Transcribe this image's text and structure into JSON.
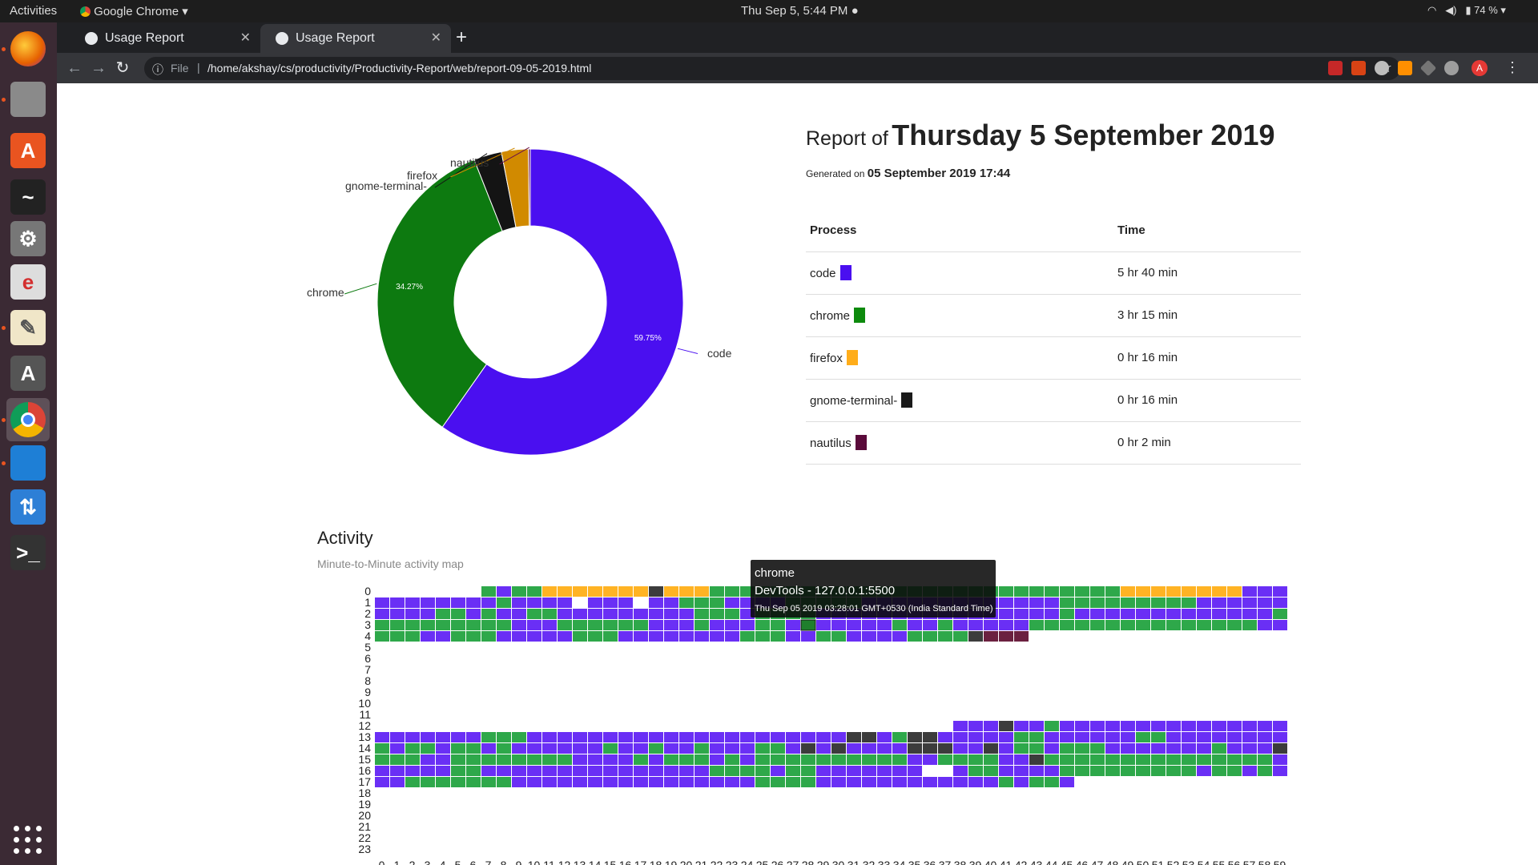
{
  "topbar": {
    "activities": "Activities",
    "app_menu": "Google Chrome",
    "clock": "Thu Sep  5,  5:44 PM",
    "battery": "74 %"
  },
  "dock": {
    "items": [
      {
        "name": "firefox-icon",
        "color": "#e66000",
        "glyph": "",
        "running": true
      },
      {
        "name": "files-icon",
        "color": "#8a8a8a",
        "glyph": "",
        "running": true
      },
      {
        "name": "software-center-icon",
        "color": "#e95420",
        "glyph": "A",
        "running": false
      },
      {
        "name": "system-monitor-icon",
        "color": "#222222",
        "glyph": "~",
        "running": false
      },
      {
        "name": "settings-tools-icon",
        "color": "#777777",
        "glyph": "⚙",
        "running": false
      },
      {
        "name": "app-e-icon",
        "color": "#dddddd",
        "glyph": "e",
        "running": false
      },
      {
        "name": "text-editor-icon",
        "color": "#f0e6c8",
        "glyph": "✎",
        "running": true
      },
      {
        "name": "software-updater-icon",
        "color": "#555555",
        "glyph": "A",
        "running": false
      },
      {
        "name": "chrome-icon",
        "color": "#ffffff",
        "glyph": "",
        "running": true
      },
      {
        "name": "vscode-icon",
        "color": "#1e7fd6",
        "glyph": "",
        "running": true
      },
      {
        "name": "upload-icon",
        "color": "#2d7fd6",
        "glyph": "⇅",
        "running": false
      },
      {
        "name": "terminal-icon",
        "color": "#333333",
        "glyph": ">_",
        "running": false
      }
    ]
  },
  "browser": {
    "tabs": [
      {
        "title": "Usage Report",
        "active": false
      },
      {
        "title": "Usage Report",
        "active": true
      }
    ],
    "url_scheme": "File",
    "url": "/home/akshay/cs/productivity/Productivity-Report/web/report-09-05-2019.html"
  },
  "report": {
    "title_prefix": "Report of",
    "title_date": "Thursday 5 September 2019",
    "generated_prefix": "Generated on",
    "generated_date": "05 September 2019 17:44",
    "table_headers": {
      "process": "Process",
      "time": "Time"
    },
    "processes": [
      {
        "name": "code",
        "time": "5 hr 40 min",
        "color": "#4a0ff0"
      },
      {
        "name": "chrome",
        "time": "3 hr 15 min",
        "color": "#0d8a0d"
      },
      {
        "name": "firefox",
        "time": "0 hr 16 min",
        "color": "#ffad1a"
      },
      {
        "name": "gnome-terminal-",
        "time": "0 hr 16 min",
        "color": "#1a1a1a"
      },
      {
        "name": "nautilus",
        "time": "0 hr 2 min",
        "color": "#5a0a3a"
      }
    ]
  },
  "chart_data": [
    {
      "type": "pie",
      "labels": [
        "code",
        "chrome",
        "gnome-terminal-",
        "firefox",
        "nautilus"
      ],
      "values": [
        59.75,
        34.27,
        2.95,
        2.83,
        0.2
      ],
      "colors": [
        "#4a0ff0",
        "#0d7a10",
        "#141414",
        "#d18a00",
        "#6a0f4a"
      ],
      "data_labels": {
        "code": "59.75%",
        "chrome": "34.27%"
      }
    },
    {
      "type": "heatmap",
      "title": "Activity",
      "subtitle": "Minute-to-Minute activity map",
      "x_ticks": [
        "0",
        "1",
        "2",
        "3",
        "4",
        "5",
        "6",
        "7",
        "8",
        "9",
        "10",
        "11",
        "12",
        "13",
        "14",
        "15",
        "16",
        "17",
        "18",
        "19",
        "20",
        "21",
        "22",
        "23",
        "24",
        "25",
        "26",
        "27",
        "28",
        "29",
        "30",
        "31",
        "32",
        "33",
        "34",
        "35",
        "36",
        "37",
        "38",
        "39",
        "40",
        "41",
        "42",
        "43",
        "44",
        "45",
        "46",
        "47",
        "48",
        "49",
        "50",
        "51",
        "52",
        "53",
        "54",
        "55",
        "56",
        "57",
        "58",
        "59"
      ],
      "y_ticks": [
        "0",
        "1",
        "2",
        "3",
        "4",
        "5",
        "6",
        "7",
        "8",
        "9",
        "10",
        "11",
        "12",
        "13",
        "14",
        "15",
        "16",
        "17",
        "18",
        "19",
        "20",
        "21",
        "22",
        "23"
      ],
      "legend_keys": {
        "C": "code",
        "G": "chrome",
        "F": "firefox",
        "T": "gnome-terminal-",
        "N": "nautilus"
      },
      "rows": [
        ".......GCGGFFFFFFFTFFFGGGGGGGGGGGGGGGGGGGGGGGGGGGFFFFFFFFCCCCCCGGGCCC",
        "CCCCCCCCGCCCC.CCC.CCGGGCCCCGGGGGCCCCCCCCCCCCCGGGGGGGGGCCCCCCCG",
        "CCCCGGCGCCGGCCCCCCCCCGGGCGGGGCCCCCCCCCCCCCCCCGCCCCCCCCCCCCCGCC",
        "GGGGGGGGGCCCGGGGGGCCCGCCCGGCCCCCCCGCCGCCCCCGGGGGGGGGGGGGGGCCCC",
        "GGGCCGGGCCCCCGGGCCCCCCCCGGGCCGGCCCCGGGGTNNN",
        "",
        "",
        "",
        "",
        "",
        "",
        "",
        "......................................CCCTCCGCCCCCCCCCCCCCCCCC",
        "CCCCCCCGGGCCCCCCCCCCCCCCCCCCCCCTTCGTTCCCCCGGCCCCCCGGCCCCCCCCCC",
        "GCGGCGGCGCCCCCCGCCGCCGCCCGGCTCTCCCCTTTCCTCGGCGGGCCCCCCCGCCCTCG",
        "GGGCCGGGGGGGGCCCCGCGGGCGCGGGGGGGGGGCCGGGGCCTGGGGGGGGGGGGGGGCGG",
        "CCCCCGGCCCCCCCCCCCCCCCGGGGCGGCCCCCCC..CGGCCCCGGGGGGGGGCGGCGCCC",
        "CCGGGGGGGCCCCCCCCCCCCCCCCGGGGCCCCCCCCCCCCGCGGC",
        "",
        "",
        "",
        "",
        "",
        ""
      ]
    }
  ],
  "tooltip": {
    "line1": "chrome",
    "line2": "DevTools - 127.0.0.1:5500",
    "line3": "Thu Sep 05 2019 03:28:01 GMT+0530 (India Standard Time)"
  }
}
